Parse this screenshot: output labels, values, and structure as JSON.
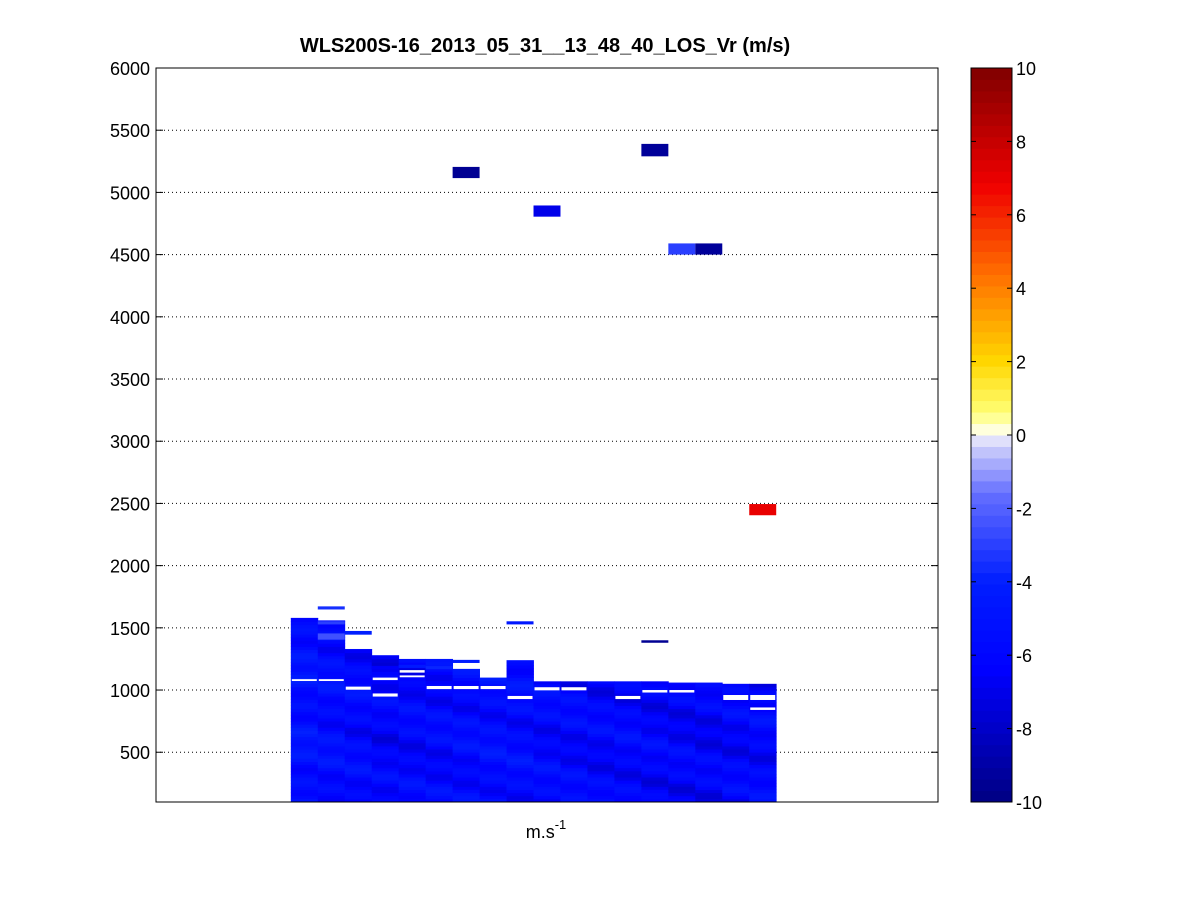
{
  "chart_data": {
    "type": "heatmap",
    "title": "WLS200S-16_2013_05_31__13_48_40_LOS_Vr (m/s)",
    "xlabel_base": "m.s",
    "xlabel_exp": "-1",
    "ylabel": "",
    "ylim": [
      100,
      6000
    ],
    "xlim": [
      0,
      29
    ],
    "yticks": [
      500,
      1000,
      1500,
      2000,
      2500,
      3000,
      3500,
      4000,
      4500,
      5000,
      5500,
      6000
    ],
    "ytick_labels": [
      "500",
      "1000",
      "1500",
      "2000",
      "2500",
      "3000",
      "3500",
      "4000",
      "4500",
      "5000",
      "5500",
      "6000"
    ],
    "grid": "horizontal dotted",
    "colorbar": {
      "vmin": -10,
      "vmax": 10,
      "ticks": [
        -10,
        -8,
        -6,
        -4,
        -2,
        0,
        2,
        4,
        6,
        8,
        10
      ],
      "tick_labels": [
        "-10",
        "-8",
        "-6",
        "-4",
        "-2",
        "0",
        "2",
        "4",
        "6",
        "8",
        "10"
      ],
      "colormap": "blue-white-red (jet-like upper half)"
    },
    "columns": [
      {
        "x": 5,
        "top": 1580,
        "base_value": -5.2
      },
      {
        "x": 6,
        "top": 1560,
        "base_value": -5.5
      },
      {
        "x": 7,
        "top": 1330,
        "base_value": -5.8
      },
      {
        "x": 8,
        "top": 1280,
        "base_value": -6.2
      },
      {
        "x": 9,
        "top": 1250,
        "base_value": -6.0
      },
      {
        "x": 10,
        "top": 1250,
        "base_value": -5.9
      },
      {
        "x": 11,
        "top": 1170,
        "base_value": -5.7
      },
      {
        "x": 12,
        "top": 1100,
        "base_value": -5.5
      },
      {
        "x": 13,
        "top": 1240,
        "base_value": -5.6
      },
      {
        "x": 14,
        "top": 1070,
        "base_value": -5.9
      },
      {
        "x": 15,
        "top": 1070,
        "base_value": -6.0
      },
      {
        "x": 16,
        "top": 1070,
        "base_value": -6.1
      },
      {
        "x": 17,
        "top": 1070,
        "base_value": -6.0
      },
      {
        "x": 18,
        "top": 1070,
        "base_value": -6.2
      },
      {
        "x": 19,
        "top": 1060,
        "base_value": -6.3
      },
      {
        "x": 20,
        "top": 1060,
        "base_value": -6.4
      },
      {
        "x": 21,
        "top": 1050,
        "base_value": -6.2
      },
      {
        "x": 22,
        "top": 1050,
        "base_value": -6.0
      }
    ],
    "cells": [
      {
        "x": 6,
        "y": 1660,
        "h": 25,
        "w": 1,
        "value": -3.5
      },
      {
        "x": 6,
        "y": 1540,
        "h": 25,
        "w": 1,
        "value": -3.0
      },
      {
        "x": 6,
        "y": 1430,
        "h": 50,
        "w": 1,
        "value": -2.5
      },
      {
        "x": 7,
        "y": 1460,
        "h": 30,
        "w": 1,
        "value": -4.0
      },
      {
        "x": 8,
        "y": 1180,
        "h": 25,
        "w": 1,
        "value": -6.5
      },
      {
        "x": 9,
        "y": 1190,
        "h": 25,
        "w": 1,
        "value": -4.5
      },
      {
        "x": 10,
        "y": 1180,
        "h": 25,
        "w": 1,
        "value": -3.8
      },
      {
        "x": 11,
        "y": 1230,
        "h": 25,
        "w": 1,
        "value": -4.2
      },
      {
        "x": 13,
        "y": 1540,
        "h": 25,
        "w": 1,
        "value": -4.6
      },
      {
        "x": 18,
        "y": 1390,
        "h": 20,
        "w": 1,
        "value": -9.5
      },
      {
        "x": 11,
        "y": 5160,
        "h": 90,
        "w": 1,
        "value": -9.5
      },
      {
        "x": 14,
        "y": 4850,
        "h": 90,
        "w": 1,
        "value": -7.0
      },
      {
        "x": 18,
        "y": 5340,
        "h": 100,
        "w": 1,
        "value": -9.3
      },
      {
        "x": 19,
        "y": 4545,
        "h": 90,
        "w": 1,
        "value": -3.0
      },
      {
        "x": 20,
        "y": 4545,
        "h": 90,
        "w": 1,
        "value": -9.3
      },
      {
        "x": 22,
        "y": 2450,
        "h": 90,
        "w": 1,
        "value": 7.0
      }
    ],
    "gaps": [
      {
        "x": 5,
        "y": 1080,
        "h": 15
      },
      {
        "x": 6,
        "y": 1080,
        "h": 15
      },
      {
        "x": 7,
        "y": 1015,
        "h": 25
      },
      {
        "x": 8,
        "y": 960,
        "h": 25
      },
      {
        "x": 8,
        "y": 1090,
        "h": 20
      },
      {
        "x": 9,
        "y": 1150,
        "h": 20
      },
      {
        "x": 9,
        "y": 1110,
        "h": 15
      },
      {
        "x": 10,
        "y": 1020,
        "h": 25
      },
      {
        "x": 11,
        "y": 1020,
        "h": 25
      },
      {
        "x": 12,
        "y": 1020,
        "h": 25
      },
      {
        "x": 13,
        "y": 940,
        "h": 25
      },
      {
        "x": 14,
        "y": 1010,
        "h": 25
      },
      {
        "x": 15,
        "y": 1010,
        "h": 25
      },
      {
        "x": 17,
        "y": 940,
        "h": 25
      },
      {
        "x": 18,
        "y": 990,
        "h": 20
      },
      {
        "x": 19,
        "y": 990,
        "h": 20
      },
      {
        "x": 21,
        "y": 940,
        "h": 40
      },
      {
        "x": 22,
        "y": 940,
        "h": 40
      },
      {
        "x": 22,
        "y": 850,
        "h": 20
      }
    ]
  }
}
